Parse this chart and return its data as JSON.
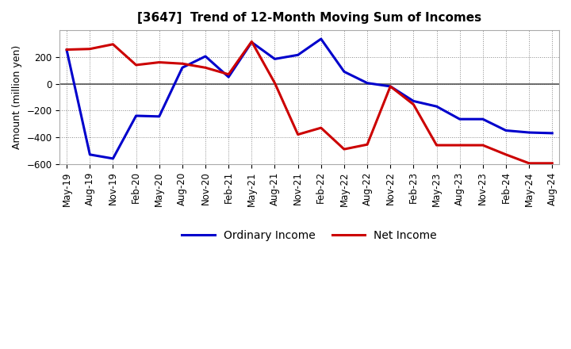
{
  "title": "[3647]  Trend of 12-Month Moving Sum of Incomes",
  "ylabel": "Amount (million yen)",
  "xlabels": [
    "May-19",
    "Aug-19",
    "Nov-19",
    "Feb-20",
    "May-20",
    "Aug-20",
    "Nov-20",
    "Feb-21",
    "May-21",
    "Aug-21",
    "Nov-21",
    "Feb-22",
    "May-22",
    "Aug-22",
    "Nov-22",
    "Feb-23",
    "May-23",
    "Aug-23",
    "Nov-23",
    "Feb-24",
    "May-24",
    "Aug-24"
  ],
  "ordinary_income": [
    250,
    -530,
    -560,
    -240,
    -245,
    120,
    205,
    50,
    310,
    185,
    215,
    335,
    90,
    5,
    -20,
    -130,
    -170,
    -265,
    -265,
    -350,
    -365,
    -370
  ],
  "net_income": [
    255,
    260,
    295,
    140,
    160,
    150,
    120,
    70,
    315,
    5,
    -380,
    -330,
    -490,
    -455,
    -20,
    -155,
    -460,
    -460,
    -460,
    -530,
    -595,
    -595
  ],
  "ordinary_income_color": "#0000cc",
  "net_income_color": "#cc0000",
  "ylim": [
    -600,
    400
  ],
  "yticks": [
    -600,
    -400,
    -200,
    0,
    200
  ],
  "legend_labels": [
    "Ordinary Income",
    "Net Income"
  ],
  "background_color": "#ffffff",
  "grid_color": "#888888",
  "line_width": 2.2,
  "title_fontsize": 11,
  "axis_fontsize": 8.5,
  "ylabel_fontsize": 9
}
